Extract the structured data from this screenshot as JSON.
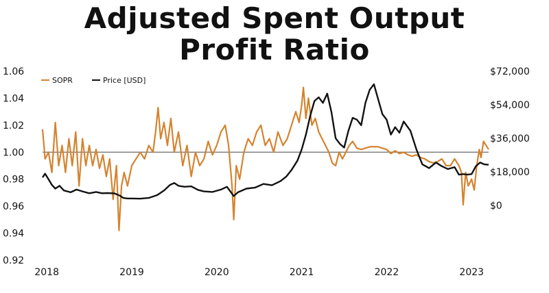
{
  "chart_data": {
    "type": "line",
    "title": "Adjusted Spent Output Profit Ratio",
    "title_lines": [
      "Adjusted Spent Output",
      "Profit Ratio"
    ],
    "xlabel": "",
    "ylabel": "",
    "x_ticks": [
      "2018",
      "2019",
      "2020",
      "2021",
      "2022",
      "2023"
    ],
    "x_range": [
      2017.95,
      2023.2
    ],
    "left_axis": {
      "ylim": [
        0.92,
        1.06
      ],
      "ticks": [
        "1.06",
        "1.04",
        "1.02",
        "1.00",
        "0.98",
        "0.96",
        "0.94",
        "0.92"
      ],
      "tick_values": [
        1.06,
        1.04,
        1.02,
        1.0,
        0.98,
        0.96,
        0.94,
        0.92
      ]
    },
    "right_axis": {
      "ylim": [
        0,
        72000
      ],
      "ticks": [
        "$72,000",
        "$54,000",
        "$36,000",
        "$18,000",
        "$0"
      ],
      "tick_values": [
        72000,
        54000,
        36000,
        18000,
        0
      ]
    },
    "reference_line": 1.0,
    "legend": {
      "placement": "top-left"
    },
    "series": [
      {
        "name": "SOPR",
        "axis": "left",
        "color": "#d4832f",
        "points": [
          [
            2017.95,
            1.017
          ],
          [
            2017.98,
            0.995
          ],
          [
            2018.02,
            1.0
          ],
          [
            2018.06,
            0.985
          ],
          [
            2018.1,
            1.022
          ],
          [
            2018.14,
            0.99
          ],
          [
            2018.18,
            1.005
          ],
          [
            2018.22,
            0.985
          ],
          [
            2018.26,
            1.01
          ],
          [
            2018.3,
            0.99
          ],
          [
            2018.34,
            1.015
          ],
          [
            2018.38,
            0.975
          ],
          [
            2018.42,
            1.01
          ],
          [
            2018.46,
            0.99
          ],
          [
            2018.5,
            1.005
          ],
          [
            2018.54,
            0.99
          ],
          [
            2018.58,
            1.002
          ],
          [
            2018.62,
            0.988
          ],
          [
            2018.66,
            0.998
          ],
          [
            2018.7,
            0.982
          ],
          [
            2018.74,
            0.995
          ],
          [
            2018.78,
            0.965
          ],
          [
            2018.82,
            0.99
          ],
          [
            2018.85,
            0.942
          ],
          [
            2018.88,
            0.975
          ],
          [
            2018.91,
            0.985
          ],
          [
            2018.95,
            0.975
          ],
          [
            2019.0,
            0.99
          ],
          [
            2019.05,
            0.995
          ],
          [
            2019.1,
            1.0
          ],
          [
            2019.15,
            0.995
          ],
          [
            2019.2,
            1.005
          ],
          [
            2019.25,
            1.0
          ],
          [
            2019.28,
            1.015
          ],
          [
            2019.31,
            1.033
          ],
          [
            2019.34,
            1.01
          ],
          [
            2019.38,
            1.022
          ],
          [
            2019.42,
            1.005
          ],
          [
            2019.46,
            1.025
          ],
          [
            2019.5,
            1.0
          ],
          [
            2019.55,
            1.015
          ],
          [
            2019.6,
            0.99
          ],
          [
            2019.65,
            1.005
          ],
          [
            2019.7,
            0.982
          ],
          [
            2019.75,
            1.0
          ],
          [
            2019.8,
            0.99
          ],
          [
            2019.85,
            0.995
          ],
          [
            2019.9,
            1.008
          ],
          [
            2019.95,
            0.998
          ],
          [
            2020.0,
            1.005
          ],
          [
            2020.05,
            1.015
          ],
          [
            2020.1,
            1.02
          ],
          [
            2020.14,
            1.005
          ],
          [
            2020.18,
            0.975
          ],
          [
            2020.2,
            0.95
          ],
          [
            2020.23,
            0.99
          ],
          [
            2020.27,
            0.98
          ],
          [
            2020.32,
            1.0
          ],
          [
            2020.37,
            1.01
          ],
          [
            2020.42,
            1.005
          ],
          [
            2020.47,
            1.015
          ],
          [
            2020.52,
            1.02
          ],
          [
            2020.57,
            1.005
          ],
          [
            2020.62,
            1.01
          ],
          [
            2020.67,
            1.0
          ],
          [
            2020.72,
            1.015
          ],
          [
            2020.78,
            1.005
          ],
          [
            2020.83,
            1.01
          ],
          [
            2020.88,
            1.02
          ],
          [
            2020.93,
            1.03
          ],
          [
            2020.97,
            1.022
          ],
          [
            2021.0,
            1.035
          ],
          [
            2021.02,
            1.048
          ],
          [
            2021.05,
            1.025
          ],
          [
            2021.08,
            1.04
          ],
          [
            2021.12,
            1.02
          ],
          [
            2021.16,
            1.025
          ],
          [
            2021.2,
            1.015
          ],
          [
            2021.24,
            1.01
          ],
          [
            2021.28,
            1.005
          ],
          [
            2021.32,
            1.0
          ],
          [
            2021.36,
            0.992
          ],
          [
            2021.4,
            0.99
          ],
          [
            2021.44,
            1.0
          ],
          [
            2021.48,
            0.995
          ],
          [
            2021.52,
            1.0
          ],
          [
            2021.56,
            1.005
          ],
          [
            2021.6,
            1.008
          ],
          [
            2021.65,
            1.003
          ],
          [
            2021.7,
            1.002
          ],
          [
            2021.75,
            1.003
          ],
          [
            2021.8,
            1.004
          ],
          [
            2021.85,
            1.004
          ],
          [
            2021.9,
            1.004
          ],
          [
            2021.95,
            1.003
          ],
          [
            2022.0,
            1.002
          ],
          [
            2022.05,
            0.999
          ],
          [
            2022.1,
            1.001
          ],
          [
            2022.15,
            0.999
          ],
          [
            2022.2,
            1.0
          ],
          [
            2022.25,
            0.998
          ],
          [
            2022.3,
            0.997
          ],
          [
            2022.35,
            0.998
          ],
          [
            2022.4,
            0.996
          ],
          [
            2022.45,
            0.995
          ],
          [
            2022.5,
            0.993
          ],
          [
            2022.55,
            0.992
          ],
          [
            2022.6,
            0.993
          ],
          [
            2022.65,
            0.995
          ],
          [
            2022.7,
            0.99
          ],
          [
            2022.75,
            0.99
          ],
          [
            2022.8,
            0.995
          ],
          [
            2022.85,
            0.99
          ],
          [
            2022.88,
            0.985
          ],
          [
            2022.9,
            0.961
          ],
          [
            2022.93,
            0.985
          ],
          [
            2022.96,
            0.975
          ],
          [
            2023.0,
            0.98
          ],
          [
            2023.03,
            0.972
          ],
          [
            2023.06,
            0.99
          ],
          [
            2023.09,
            1.002
          ],
          [
            2023.11,
            0.996
          ],
          [
            2023.14,
            1.008
          ],
          [
            2023.17,
            1.005
          ],
          [
            2023.2,
            1.002
          ]
        ]
      },
      {
        "name": "Price [USD]",
        "axis": "right",
        "color": "#111111",
        "points": [
          [
            2017.95,
            15000
          ],
          [
            2017.98,
            17000
          ],
          [
            2018.02,
            14000
          ],
          [
            2018.06,
            11000
          ],
          [
            2018.1,
            9000
          ],
          [
            2018.15,
            10500
          ],
          [
            2018.2,
            8000
          ],
          [
            2018.28,
            7000
          ],
          [
            2018.35,
            8500
          ],
          [
            2018.42,
            7500
          ],
          [
            2018.5,
            6500
          ],
          [
            2018.58,
            7200
          ],
          [
            2018.65,
            6500
          ],
          [
            2018.72,
            6600
          ],
          [
            2018.8,
            6400
          ],
          [
            2018.86,
            5200
          ],
          [
            2018.9,
            4000
          ],
          [
            2018.95,
            3700
          ],
          [
            2019.0,
            3700
          ],
          [
            2019.1,
            3600
          ],
          [
            2019.2,
            4000
          ],
          [
            2019.3,
            5500
          ],
          [
            2019.38,
            8000
          ],
          [
            2019.45,
            11000
          ],
          [
            2019.5,
            12000
          ],
          [
            2019.55,
            10500
          ],
          [
            2019.62,
            10000
          ],
          [
            2019.7,
            10200
          ],
          [
            2019.78,
            8300
          ],
          [
            2019.85,
            7500
          ],
          [
            2019.95,
            7200
          ],
          [
            2020.05,
            8500
          ],
          [
            2020.12,
            10000
          ],
          [
            2020.2,
            5000
          ],
          [
            2020.25,
            7000
          ],
          [
            2020.35,
            9000
          ],
          [
            2020.45,
            9500
          ],
          [
            2020.55,
            11500
          ],
          [
            2020.65,
            10800
          ],
          [
            2020.75,
            13000
          ],
          [
            2020.82,
            15500
          ],
          [
            2020.88,
            19000
          ],
          [
            2020.95,
            24000
          ],
          [
            2021.0,
            30000
          ],
          [
            2021.05,
            38000
          ],
          [
            2021.1,
            48000
          ],
          [
            2021.15,
            56000
          ],
          [
            2021.2,
            58000
          ],
          [
            2021.25,
            55000
          ],
          [
            2021.3,
            60000
          ],
          [
            2021.35,
            50000
          ],
          [
            2021.4,
            36000
          ],
          [
            2021.45,
            33000
          ],
          [
            2021.5,
            31000
          ],
          [
            2021.55,
            40000
          ],
          [
            2021.6,
            47000
          ],
          [
            2021.65,
            46000
          ],
          [
            2021.7,
            43000
          ],
          [
            2021.75,
            55000
          ],
          [
            2021.8,
            62000
          ],
          [
            2021.85,
            65000
          ],
          [
            2021.9,
            57000
          ],
          [
            2021.95,
            49000
          ],
          [
            2022.0,
            46000
          ],
          [
            2022.05,
            38000
          ],
          [
            2022.1,
            42000
          ],
          [
            2022.15,
            39000
          ],
          [
            2022.2,
            45000
          ],
          [
            2022.28,
            40000
          ],
          [
            2022.35,
            30000
          ],
          [
            2022.42,
            22000
          ],
          [
            2022.5,
            20000
          ],
          [
            2022.58,
            23000
          ],
          [
            2022.65,
            21000
          ],
          [
            2022.72,
            19500
          ],
          [
            2022.8,
            20500
          ],
          [
            2022.85,
            16500
          ],
          [
            2022.9,
            16800
          ],
          [
            2022.95,
            16500
          ],
          [
            2023.0,
            16800
          ],
          [
            2023.05,
            21000
          ],
          [
            2023.1,
            23000
          ],
          [
            2023.15,
            22000
          ],
          [
            2023.2,
            21800
          ]
        ]
      }
    ]
  }
}
